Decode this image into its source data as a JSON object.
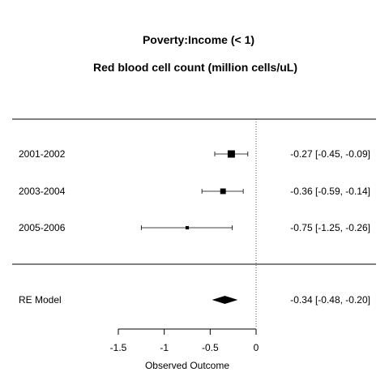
{
  "chart_data": {
    "type": "forest",
    "title": "Poverty:Income (< 1)",
    "subtitle": "Red blood cell count (million cells/uL)",
    "xlabel": "Observed Outcome",
    "xlim": [
      -1.5,
      0
    ],
    "xticks": [
      -1.5,
      -1,
      -0.5,
      0
    ],
    "xtick_labels": [
      "-1.5",
      "-1",
      "-0.5",
      "0"
    ],
    "reference_line": 0,
    "studies": [
      {
        "label": "2001-2002",
        "estimate": -0.27,
        "lower": -0.45,
        "upper": -0.09,
        "ci_text": "-0.27 [-0.45, -0.09]",
        "weight": 1.0
      },
      {
        "label": "2003-2004",
        "estimate": -0.36,
        "lower": -0.59,
        "upper": -0.14,
        "ci_text": "-0.36 [-0.59, -0.14]",
        "weight": 0.7
      },
      {
        "label": "2005-2006",
        "estimate": -0.75,
        "lower": -1.25,
        "upper": -0.26,
        "ci_text": "-0.75 [-1.25, -0.26]",
        "weight": 0.3
      }
    ],
    "summary": {
      "label": "RE Model",
      "estimate": -0.34,
      "lower": -0.48,
      "upper": -0.2,
      "ci_text": "-0.34 [-0.48, -0.20]"
    },
    "colors": {
      "ink": "#000000",
      "reference": "#555555"
    }
  }
}
